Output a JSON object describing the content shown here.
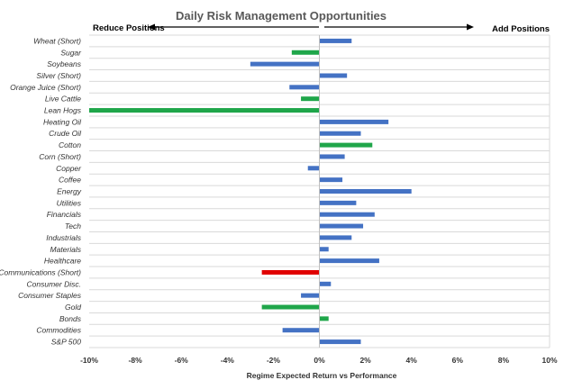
{
  "chart_data": {
    "type": "bar",
    "orientation": "horizontal",
    "title": "Daily Risk Management Opportunities",
    "left_label": "Reduce Positions",
    "right_label": "Add Positions",
    "xlabel": "Regime Expected Return vs Performance",
    "xlim": [
      -10,
      10
    ],
    "xticks": [
      -10,
      -8,
      -6,
      -4,
      -2,
      0,
      2,
      4,
      6,
      8,
      10
    ],
    "xtick_labels": [
      "-10%",
      "-8%",
      "-6%",
      "-4%",
      "-2%",
      "0%",
      "2%",
      "4%",
      "6%",
      "8%",
      "10%"
    ],
    "grid": true,
    "colors": {
      "blue": "#4472c4",
      "green": "#1fa64a",
      "red": "#e00000"
    },
    "categories": [
      "Wheat (Short)",
      "Sugar",
      "Soybeans",
      "Silver (Short)",
      "Orange Juice (Short)",
      "Live Cattle",
      "Lean Hogs",
      "Heating Oil",
      "Crude Oil",
      "Cotton",
      "Corn (Short)",
      "Copper",
      "Coffee",
      "Energy",
      "Utilities",
      "Financials",
      "Tech",
      "Industrials",
      "Materials",
      "Healthcare",
      "Communications (Short)",
      "Consumer Disc.",
      "Consumer Staples",
      "Gold",
      "Bonds",
      "Commodities",
      "S&P 500"
    ],
    "values": [
      1.4,
      -1.2,
      -3.0,
      1.2,
      -1.3,
      -0.8,
      -10.0,
      3.0,
      1.8,
      2.3,
      1.1,
      -0.5,
      1.0,
      4.0,
      1.6,
      2.4,
      1.9,
      1.4,
      0.4,
      2.6,
      -2.5,
      0.5,
      -0.8,
      -2.5,
      0.4,
      -1.6,
      1.8
    ],
    "bar_colors": [
      "blue",
      "green",
      "blue",
      "blue",
      "blue",
      "green",
      "green",
      "blue",
      "blue",
      "green",
      "blue",
      "blue",
      "blue",
      "blue",
      "blue",
      "blue",
      "blue",
      "blue",
      "blue",
      "blue",
      "red",
      "blue",
      "blue",
      "green",
      "green",
      "blue",
      "blue"
    ]
  }
}
